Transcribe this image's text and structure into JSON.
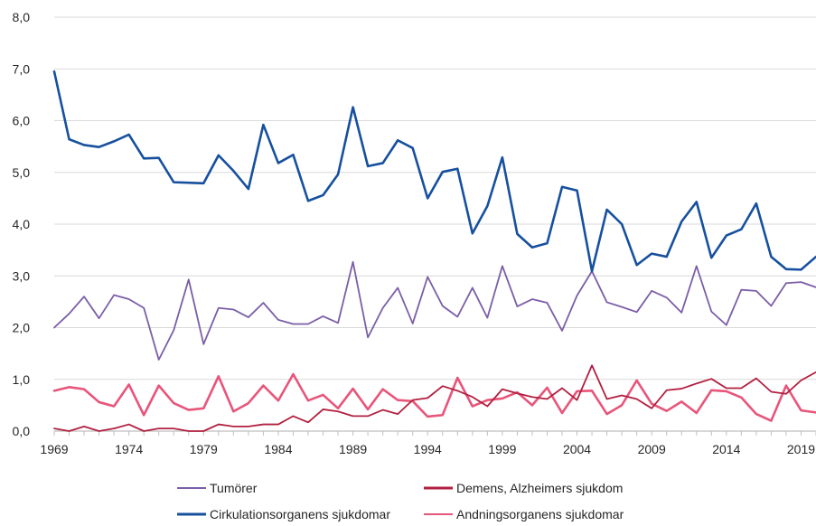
{
  "chart_data": {
    "type": "line",
    "title": "",
    "xlabel": "",
    "ylabel": "",
    "x": [
      1969,
      1970,
      1971,
      1972,
      1973,
      1974,
      1975,
      1976,
      1977,
      1978,
      1979,
      1980,
      1981,
      1982,
      1983,
      1984,
      1985,
      1986,
      1987,
      1988,
      1989,
      1990,
      1991,
      1992,
      1993,
      1994,
      1995,
      1996,
      1997,
      1998,
      1999,
      2000,
      2001,
      2002,
      2003,
      2004,
      2005,
      2006,
      2007,
      2008,
      2009,
      2010,
      2011,
      2012,
      2013,
      2014,
      2015,
      2016,
      2017,
      2018,
      2019,
      2020
    ],
    "x_tick_labels": [
      "1969",
      "1974",
      "1979",
      "1984",
      "1989",
      "1994",
      "1999",
      "2004",
      "2009",
      "2014",
      "2019"
    ],
    "y_tick_labels": [
      "0,0",
      "1,0",
      "2,0",
      "3,0",
      "4,0",
      "5,0",
      "6,0",
      "7,0",
      "8,0"
    ],
    "ylim": [
      0,
      8
    ],
    "grid": "horizontal",
    "legend_position": "bottom",
    "series": [
      {
        "name": "Tumörer",
        "color": "#7b5ea7",
        "values": [
          2.0,
          2.27,
          2.6,
          2.18,
          2.63,
          2.55,
          2.38,
          1.38,
          1.95,
          2.93,
          1.68,
          2.38,
          2.35,
          2.2,
          2.48,
          2.15,
          2.07,
          2.07,
          2.22,
          2.09,
          3.27,
          1.81,
          2.38,
          2.77,
          2.08,
          2.98,
          2.42,
          2.21,
          2.77,
          2.19,
          3.19,
          2.41,
          2.55,
          2.48,
          1.94,
          2.62,
          3.09,
          2.49,
          2.4,
          2.3,
          2.71,
          2.58,
          2.29,
          3.19,
          2.31,
          2.05,
          2.73,
          2.71,
          2.42,
          2.86,
          2.88,
          2.78
        ]
      },
      {
        "name": "Demens, Alzheimers sjukdom",
        "color": "#b22040",
        "values": [
          0.05,
          0.0,
          0.09,
          0.0,
          0.05,
          0.13,
          0.0,
          0.05,
          0.05,
          0.0,
          0.0,
          0.13,
          0.09,
          0.09,
          0.13,
          0.13,
          0.29,
          0.17,
          0.42,
          0.38,
          0.29,
          0.29,
          0.41,
          0.33,
          0.6,
          0.64,
          0.87,
          0.78,
          0.66,
          0.48,
          0.81,
          0.73,
          0.66,
          0.62,
          0.83,
          0.6,
          1.27,
          0.62,
          0.69,
          0.62,
          0.44,
          0.79,
          0.82,
          0.92,
          1.01,
          0.83,
          0.83,
          1.02,
          0.76,
          0.72,
          0.98,
          1.14
        ]
      },
      {
        "name": "Cirkulationsorganens sjukdomar",
        "color": "#16509e",
        "values": [
          6.95,
          5.64,
          5.53,
          5.49,
          5.6,
          5.73,
          5.27,
          5.28,
          4.81,
          4.8,
          4.79,
          5.33,
          5.03,
          4.68,
          5.92,
          5.18,
          5.34,
          4.45,
          4.56,
          4.96,
          6.26,
          5.12,
          5.18,
          5.62,
          5.47,
          4.5,
          5.01,
          5.07,
          3.82,
          4.35,
          5.29,
          3.81,
          3.55,
          3.63,
          4.72,
          4.65,
          3.09,
          4.28,
          4.0,
          3.21,
          3.43,
          3.37,
          4.05,
          4.43,
          3.35,
          3.78,
          3.9,
          4.4,
          3.37,
          3.13,
          3.12,
          3.37
        ]
      },
      {
        "name": "Andningsorganens sjukdomar",
        "color": "#e8557a",
        "values": [
          0.78,
          0.85,
          0.81,
          0.56,
          0.48,
          0.9,
          0.31,
          0.88,
          0.54,
          0.41,
          0.44,
          1.06,
          0.38,
          0.54,
          0.88,
          0.59,
          1.1,
          0.59,
          0.7,
          0.44,
          0.82,
          0.42,
          0.81,
          0.6,
          0.58,
          0.28,
          0.31,
          1.03,
          0.48,
          0.6,
          0.63,
          0.75,
          0.5,
          0.84,
          0.35,
          0.77,
          0.78,
          0.33,
          0.5,
          0.98,
          0.53,
          0.39,
          0.57,
          0.35,
          0.79,
          0.77,
          0.65,
          0.33,
          0.2,
          0.88,
          0.4,
          0.36
        ]
      }
    ]
  }
}
